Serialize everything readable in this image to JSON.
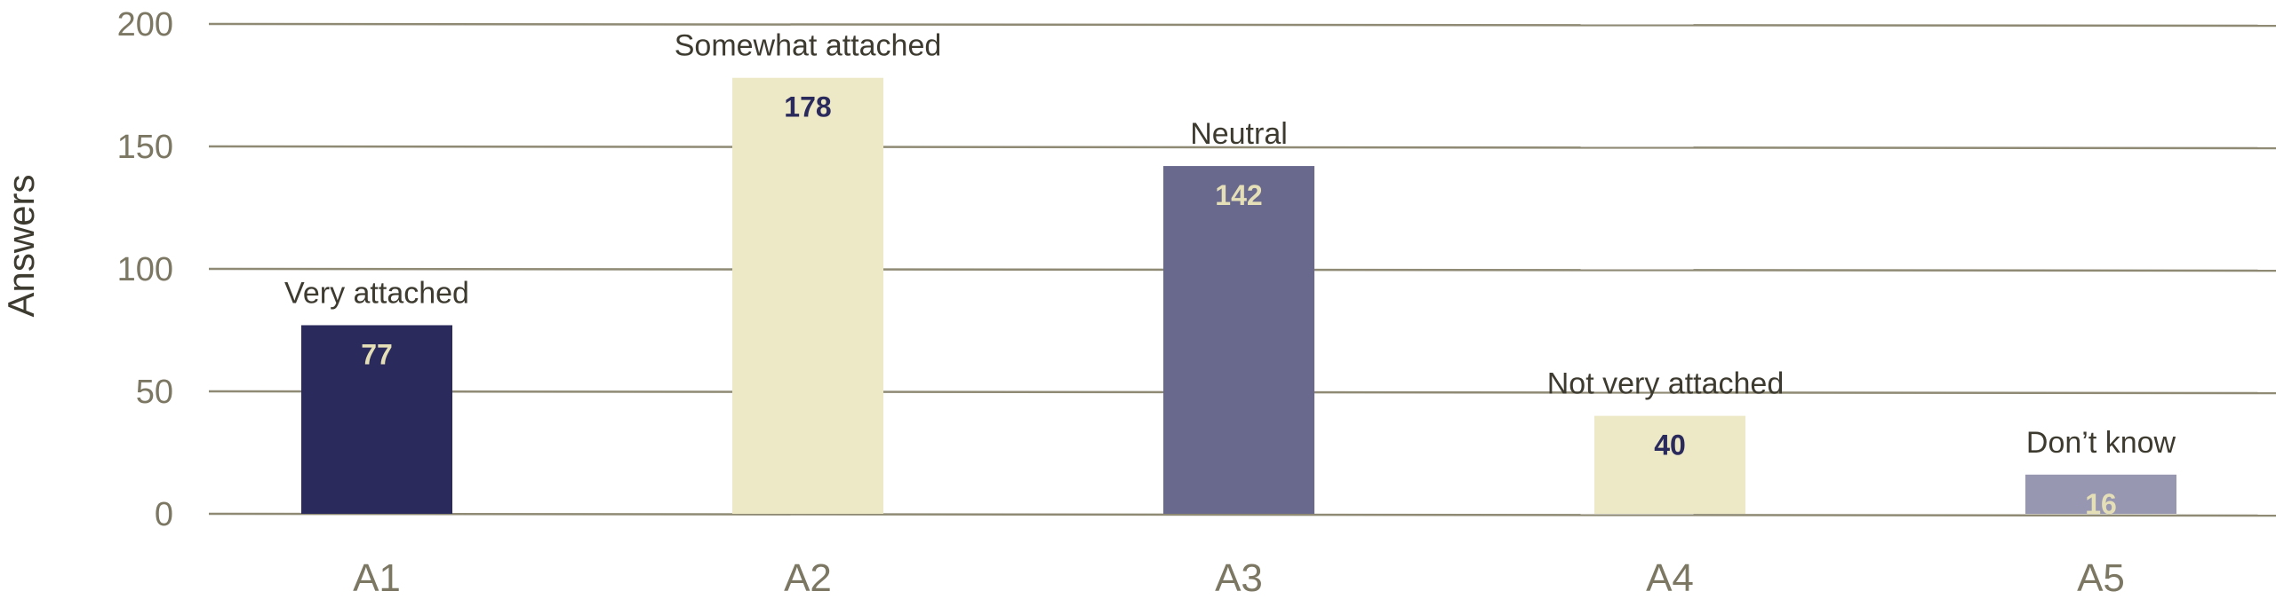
{
  "chart_data": {
    "type": "bar",
    "ylabel": "Answers",
    "ylim": [
      0,
      200
    ],
    "yticks": [
      0,
      50,
      100,
      150,
      200
    ],
    "categories": [
      "A1",
      "A2",
      "A3",
      "A4",
      "A5"
    ],
    "values": [
      77,
      178,
      142,
      40,
      16
    ],
    "annotations": [
      "Very attached",
      "Somewhat attached",
      "Neutral",
      "Not very attached",
      "Don’t know"
    ],
    "bar_colors": [
      "#2b2a5c",
      "#ede8c6",
      "#69688d",
      "#ede8c6",
      "#9897b1"
    ],
    "value_label_colors": [
      "#e5dfb7",
      "#2b2a5c",
      "#e5dfb7",
      "#2b2a5c",
      "#e5dfb7"
    ],
    "grid": true,
    "legend": "none",
    "gridline_color": "#8e8a74"
  }
}
